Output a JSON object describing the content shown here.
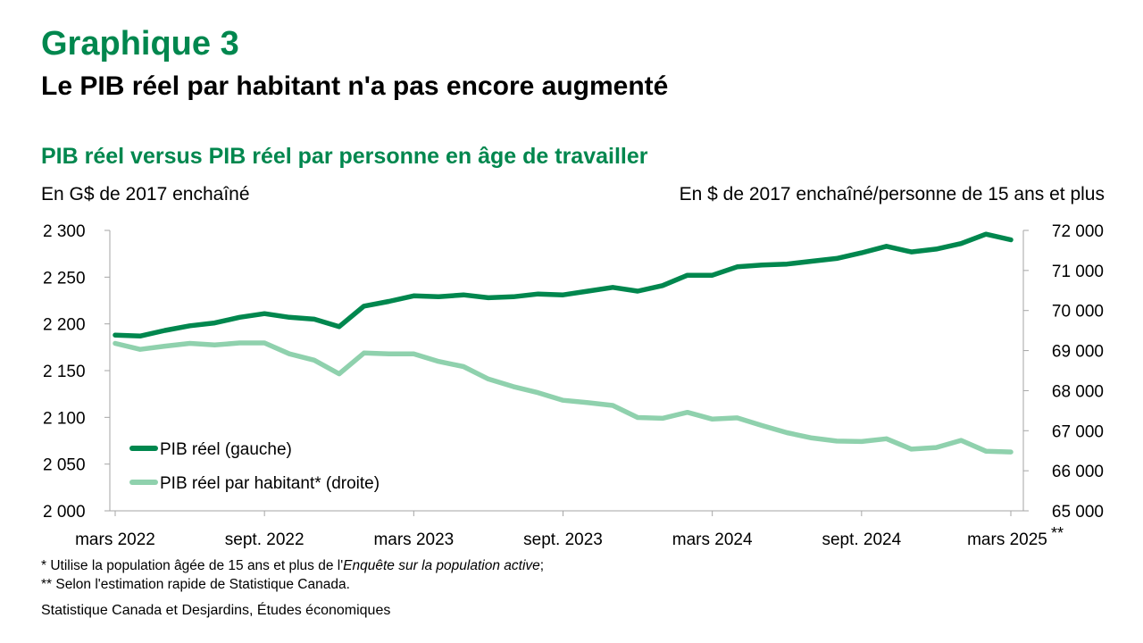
{
  "header": {
    "graph_number": "Graphique 3",
    "title": "Le PIB réel par habitant n'a pas encore augmenté"
  },
  "colors": {
    "brand_green": "#00874e",
    "series_dark": "#00874e",
    "series_light": "#8fd1ad"
  },
  "chart_data": {
    "type": "line",
    "title": "PIB réel versus PIB réel par personne en âge de travailler",
    "ylabel": "En G$ de 2017 enchaîné",
    "y2label": "En $ de 2017 enchaîné/personne de 15 ans et plus",
    "ylim": [
      2000,
      2300
    ],
    "y2lim": [
      65000,
      72000
    ],
    "yticks": [
      "2 000",
      "2 050",
      "2 100",
      "2 150",
      "2 200",
      "2 250",
      "2 300"
    ],
    "y2ticks": [
      "65 000",
      "66 000",
      "67 000",
      "68 000",
      "69 000",
      "70 000",
      "71 000",
      "72 000"
    ],
    "x_tick_labels": [
      "mars 2022",
      "sept. 2022",
      "mars 2023",
      "sept. 2023",
      "mars 2024",
      "sept. 2024",
      "mars 2025"
    ],
    "x_last_mark": "**",
    "x_months": [
      "2022-03",
      "2022-04",
      "2022-05",
      "2022-06",
      "2022-07",
      "2022-08",
      "2022-09",
      "2022-10",
      "2022-11",
      "2022-12",
      "2023-01",
      "2023-02",
      "2023-03",
      "2023-04",
      "2023-05",
      "2023-06",
      "2023-07",
      "2023-08",
      "2023-09",
      "2023-10",
      "2023-11",
      "2023-12",
      "2024-01",
      "2024-02",
      "2024-03",
      "2024-04",
      "2024-05",
      "2024-06",
      "2024-07",
      "2024-08",
      "2024-09",
      "2024-10",
      "2024-11",
      "2024-12",
      "2025-01",
      "2025-02",
      "2025-03"
    ],
    "grid": false,
    "legend_position": "bottom-left",
    "series": [
      {
        "name": "PIB réel (gauche)",
        "axis": "left",
        "values": [
          2188,
          2187,
          2193,
          2198,
          2201,
          2207,
          2211,
          2207,
          2205,
          2197,
          2219,
          2224,
          2230,
          2229,
          2231,
          2228,
          2229,
          2232,
          2231,
          2235,
          2239,
          2235,
          2241,
          2252,
          2252,
          2261,
          2263,
          2264,
          2267,
          2270,
          2276,
          2283,
          2277,
          2280,
          2286,
          2296,
          2290
        ]
      },
      {
        "name": "PIB réel par habitant* (droite)",
        "axis": "right",
        "values": [
          69180,
          69030,
          69110,
          69180,
          69140,
          69190,
          69190,
          68920,
          68760,
          68420,
          68940,
          68920,
          68920,
          68730,
          68600,
          68290,
          68100,
          67950,
          67760,
          67700,
          67630,
          67330,
          67310,
          67460,
          67290,
          67320,
          67130,
          66950,
          66820,
          66740,
          66730,
          66800,
          66540,
          66580,
          66760,
          66490,
          66470
        ]
      }
    ]
  },
  "footnotes": {
    "line1_prefix": "* Utilise la population âgée de 15 ans et plus de l'",
    "line1_italic": "Enquête sur la population active",
    "line1_suffix": ";",
    "line2": "** Selon l'estimation rapide de Statistique Canada."
  },
  "source": "Statistique Canada et Desjardins, Études économiques"
}
